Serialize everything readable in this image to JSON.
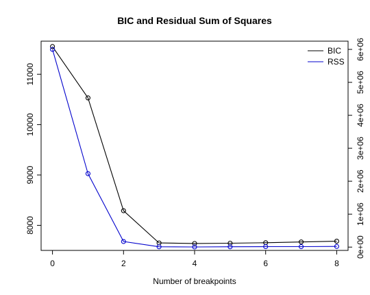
{
  "chart_data": {
    "type": "line",
    "title": "BIC and Residual Sum of Squares",
    "xlabel": "Number of breakpoints",
    "ylabel": "",
    "y2label": "",
    "x": [
      0,
      1,
      2,
      3,
      4,
      5,
      6,
      7,
      8
    ],
    "xlim": [
      -0.32,
      8.32
    ],
    "x_ticks": [
      "0",
      "2",
      "4",
      "6",
      "8"
    ],
    "x_tick_values": [
      0,
      2,
      4,
      6,
      8
    ],
    "ylim_left": [
      7502,
      11657
    ],
    "y_ticks_left": [
      "8000",
      "9000",
      "10000",
      "11000"
    ],
    "y_tick_values_left": [
      8000,
      9000,
      10000,
      11000
    ],
    "ylim_right": [
      -100000,
      6250000
    ],
    "y_ticks_right": [
      "0e+00",
      "1e+06",
      "2e+06",
      "3e+06",
      "4e+06",
      "5e+06",
      "6e+06"
    ],
    "y_tick_values_right": [
      0,
      1000000,
      2000000,
      3000000,
      4000000,
      5000000,
      6000000
    ],
    "series": [
      {
        "name": "BIC",
        "axis": "left",
        "color": "#000000",
        "values": [
          11550,
          10530,
          8290,
          7650,
          7640,
          7645,
          7655,
          7670,
          7685
        ]
      },
      {
        "name": "RSS",
        "axis": "right",
        "color": "#0000cc",
        "values": [
          6000000,
          2230000,
          170000,
          10000,
          5000,
          10000,
          15000,
          15000,
          20000
        ]
      }
    ],
    "legend": {
      "position": "top-right",
      "entries": [
        "BIC",
        "RSS"
      ]
    },
    "grid": false
  }
}
